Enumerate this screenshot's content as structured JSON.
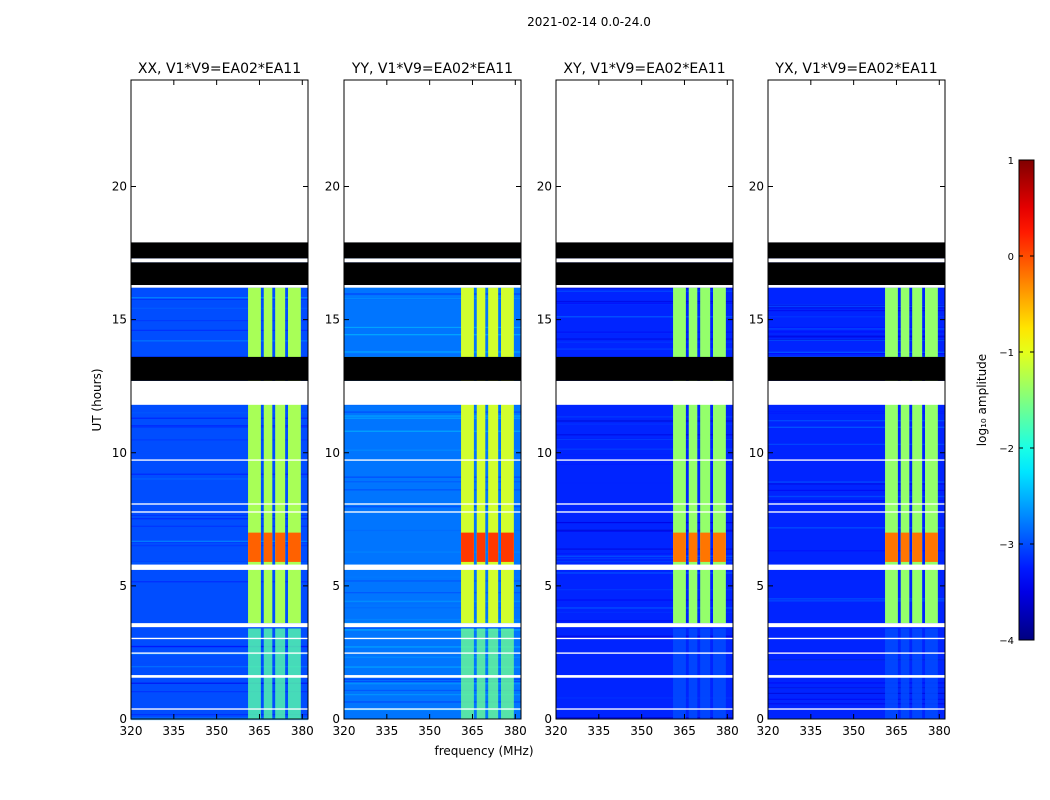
{
  "figure_title": "2021-02-14 0.0-24.0",
  "ylabel": "UT (hours)",
  "xlabel": "frequency (MHz)",
  "colorbar": {
    "label": "log₁₀ amplitude",
    "ticks": [
      "1",
      "0",
      "−1",
      "−2",
      "−3",
      "−4"
    ],
    "range": [
      -4,
      1
    ]
  },
  "chart_data": {
    "type": "heatmap",
    "xlim": [
      320,
      382
    ],
    "ylim": [
      0,
      24
    ],
    "xticks": [
      "320",
      "335",
      "350",
      "365",
      "380"
    ],
    "yticks": [
      "0",
      "5",
      "10",
      "15",
      "20"
    ],
    "xtick_values": [
      320,
      335,
      350,
      365,
      380
    ],
    "ytick_values": [
      0,
      5,
      10,
      15,
      20
    ],
    "panels": [
      {
        "title": "XX, V1*V9=EA02*EA11",
        "background_level": -3.0,
        "rfi_level": -1.3,
        "early_level": -1.7
      },
      {
        "title": "YY, V1*V9=EA02*EA11",
        "background_level": -2.8,
        "rfi_level": -1.1,
        "early_level": -1.6
      },
      {
        "title": "XY, V1*V9=EA02*EA11",
        "background_level": -3.2,
        "rfi_level": -1.4,
        "early_level": -3.0
      },
      {
        "title": "YX, V1*V9=EA02*EA11",
        "background_level": -3.2,
        "rfi_level": -1.4,
        "early_level": -3.0
      }
    ],
    "rfi_band_mhz": [
      361,
      380
    ],
    "rfi_subbands_mhz": [
      [
        361,
        365.5
      ],
      [
        366.5,
        369.5
      ],
      [
        370.5,
        374
      ],
      [
        375,
        379.5
      ]
    ],
    "strong_rfi_hours": [
      5.9,
      7.0
    ],
    "flagged_hours_white": [
      [
        17.9,
        24.0
      ],
      [
        17.15,
        17.3
      ],
      [
        16.2,
        16.3
      ],
      [
        11.8,
        12.7
      ],
      [
        9.7,
        9.75
      ],
      [
        8.05,
        8.1
      ],
      [
        7.75,
        7.8
      ],
      [
        5.6,
        5.8
      ],
      [
        3.45,
        3.6
      ],
      [
        3.0,
        3.05
      ],
      [
        2.45,
        2.5
      ],
      [
        1.55,
        1.65
      ],
      [
        0.35,
        0.4
      ]
    ],
    "flagged_hours_black": [
      [
        17.3,
        17.9
      ],
      [
        16.3,
        17.15
      ],
      [
        12.7,
        13.6
      ]
    ]
  }
}
